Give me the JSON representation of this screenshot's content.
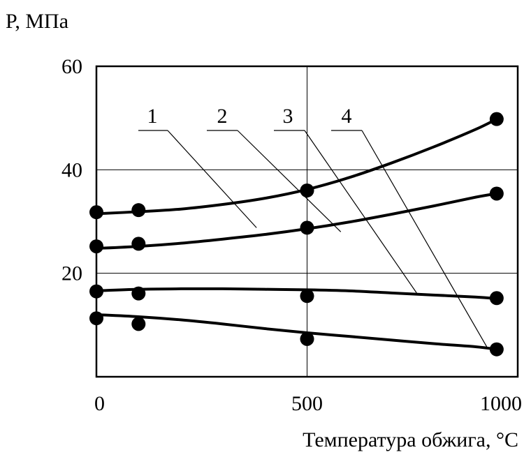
{
  "chart_data": {
    "type": "line",
    "ylabel": "P, МПа",
    "xlabel": "Температура обжига, °C",
    "xlim": [
      0,
      1000
    ],
    "ylim": [
      0,
      60
    ],
    "x_ticks": [
      {
        "value": 0,
        "label": "0"
      },
      {
        "value": 500,
        "label": "500"
      },
      {
        "value": 1000,
        "label": "1000"
      }
    ],
    "y_ticks": [
      {
        "value": 20,
        "label": "20"
      },
      {
        "value": 40,
        "label": "40"
      },
      {
        "value": 60,
        "label": "60"
      }
    ],
    "gridlines_x": [
      500
    ],
    "gridlines_y": [
      20,
      40
    ],
    "grid": true,
    "series": [
      {
        "name": "1",
        "points": [
          {
            "x": 0,
            "y": 31.8
          },
          {
            "x": 100,
            "y": 32.2
          },
          {
            "x": 500,
            "y": 36
          },
          {
            "x": 950,
            "y": 49.8
          }
        ],
        "curve": [
          [
            0,
            31.5
          ],
          [
            100,
            31.9
          ],
          [
            200,
            32.4
          ],
          [
            300,
            33.3
          ],
          [
            400,
            34.5
          ],
          [
            500,
            36.2
          ],
          [
            600,
            38.5
          ],
          [
            700,
            41.3
          ],
          [
            800,
            44.4
          ],
          [
            900,
            47.8
          ],
          [
            950,
            49.8
          ]
        ]
      },
      {
        "name": "2",
        "points": [
          {
            "x": 0,
            "y": 25.2
          },
          {
            "x": 100,
            "y": 25.7
          },
          {
            "x": 500,
            "y": 28.8
          },
          {
            "x": 950,
            "y": 35.4
          }
        ],
        "curve": [
          [
            0,
            24.8
          ],
          [
            100,
            25.2
          ],
          [
            200,
            25.8
          ],
          [
            300,
            26.6
          ],
          [
            400,
            27.5
          ],
          [
            500,
            28.6
          ],
          [
            600,
            29.9
          ],
          [
            700,
            31.4
          ],
          [
            800,
            33
          ],
          [
            900,
            34.7
          ],
          [
            950,
            35.4
          ]
        ]
      },
      {
        "name": "3",
        "points": [
          {
            "x": 0,
            "y": 16.5
          },
          {
            "x": 100,
            "y": 16.1
          },
          {
            "x": 500,
            "y": 15.6
          },
          {
            "x": 950,
            "y": 15.2
          }
        ],
        "curve": [
          [
            0,
            16.6
          ],
          [
            100,
            16.9
          ],
          [
            200,
            17
          ],
          [
            300,
            17
          ],
          [
            400,
            16.9
          ],
          [
            500,
            16.8
          ],
          [
            600,
            16.6
          ],
          [
            700,
            16.2
          ],
          [
            800,
            15.8
          ],
          [
            900,
            15.4
          ],
          [
            950,
            15.1
          ]
        ]
      },
      {
        "name": "4",
        "points": [
          {
            "x": 0,
            "y": 11.3
          },
          {
            "x": 100,
            "y": 10.2
          },
          {
            "x": 500,
            "y": 7.3
          },
          {
            "x": 950,
            "y": 5.3
          }
        ],
        "curve": [
          [
            0,
            12
          ],
          [
            100,
            11.6
          ],
          [
            200,
            11
          ],
          [
            300,
            10.2
          ],
          [
            400,
            9.3
          ],
          [
            500,
            8.5
          ],
          [
            600,
            7.8
          ],
          [
            700,
            7.1
          ],
          [
            800,
            6.4
          ],
          [
            900,
            5.8
          ],
          [
            950,
            5.3
          ]
        ]
      }
    ],
    "annotations": [
      {
        "label": "1",
        "target": [
          380,
          28.8
        ]
      },
      {
        "label": "2",
        "target": [
          580,
          28.0
        ]
      },
      {
        "label": "3",
        "target": [
          760,
          16.2
        ]
      },
      {
        "label": "4",
        "target": [
          930,
          5.3
        ]
      }
    ]
  }
}
